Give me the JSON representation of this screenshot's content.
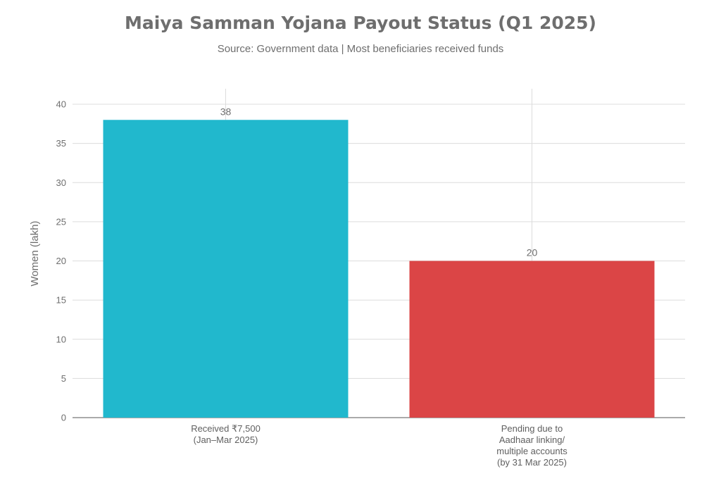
{
  "chart_data": {
    "type": "bar",
    "title": "Maiya Samman Yojana Payout Status (Q1 2025)",
    "subtitle": "Source: Government data | Most beneficiaries received funds",
    "ylabel": "Women (lakh)",
    "xlabel": "",
    "ylim": [
      0,
      42
    ],
    "yticks": [
      0,
      5,
      10,
      15,
      20,
      25,
      30,
      35,
      40
    ],
    "grid": true,
    "categories": [
      [
        "Received ₹7,500",
        "(Jan–Mar 2025)"
      ],
      [
        "Pending due to",
        "Aadhaar linking/",
        "multiple accounts",
        "(by 31 Mar 2025)"
      ]
    ],
    "values": [
      38,
      20
    ],
    "data_labels": [
      "38",
      "20"
    ],
    "colors": [
      "#21b8cd",
      "#db4546"
    ]
  }
}
